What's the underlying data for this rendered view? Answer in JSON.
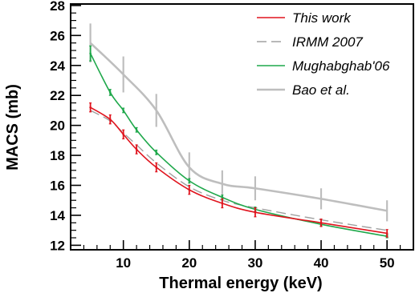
{
  "chart_data": {
    "type": "line",
    "xlabel": "Thermal energy (keV)",
    "ylabel": "MACS (mb)",
    "xlim": [
      2,
      54
    ],
    "ylim": [
      11.7,
      28.1
    ],
    "xticks": [
      10,
      20,
      30,
      40,
      50
    ],
    "yticks": [
      12,
      14,
      16,
      18,
      20,
      22,
      24,
      26,
      28
    ],
    "grid": false,
    "legend_position": "top-right",
    "series": [
      {
        "name": "This work",
        "color": "#e0141e",
        "style": "solid",
        "x": [
          5,
          8,
          10,
          12,
          15,
          20,
          25,
          30,
          40,
          50
        ],
        "y": [
          21.2,
          20.4,
          19.4,
          18.4,
          17.2,
          15.7,
          14.8,
          14.2,
          13.5,
          12.8
        ],
        "error_bars": [
          0.3,
          0.3,
          0.3,
          0.3,
          0.3,
          0.3,
          0.3,
          0.3,
          0.25,
          0.25
        ]
      },
      {
        "name": "IRMM 2007",
        "color": "#a0a0a0",
        "style": "dashed",
        "x": [
          5,
          8,
          10,
          12,
          15,
          20,
          25,
          30,
          40,
          50
        ],
        "y": [
          21.0,
          20.3,
          19.5,
          18.7,
          17.5,
          15.9,
          15.0,
          14.5,
          13.7,
          13.0
        ]
      },
      {
        "name": "Mughabghab'06",
        "color": "#1fa84b",
        "style": "solid",
        "x": [
          5,
          8,
          10,
          12,
          15,
          20,
          25,
          30,
          40,
          50
        ],
        "y": [
          24.8,
          22.2,
          21.0,
          19.7,
          18.2,
          16.3,
          15.2,
          14.4,
          13.4,
          12.6
        ],
        "error_bars": [
          0.5,
          0.2,
          0.15,
          0.15,
          0.15,
          0.15,
          0.15,
          0.15,
          0.1,
          0.1
        ]
      },
      {
        "name": "Bao et al.",
        "color": "#bebebe",
        "style": "solid",
        "x": [
          5,
          10,
          15,
          20,
          25,
          30,
          40,
          50
        ],
        "y": [
          25.5,
          23.4,
          21.0,
          17.2,
          16.1,
          15.8,
          15.1,
          14.3
        ],
        "error_bars": [
          1.3,
          1.2,
          1.1,
          1.0,
          0.9,
          0.8,
          0.7,
          0.7
        ]
      }
    ]
  }
}
